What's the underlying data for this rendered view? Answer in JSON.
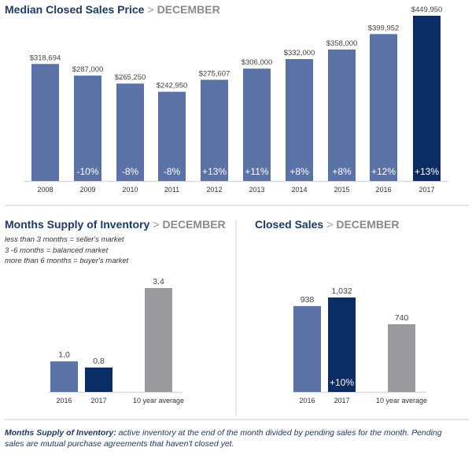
{
  "colors": {
    "bar": "#5a72a6",
    "highlight": "#0c2d63",
    "average": "#9a9a9c",
    "title": "#1f3a63",
    "subtitle": "#8a8a8a",
    "label": "#444444",
    "change_label": "#ffffff"
  },
  "chart_data": [
    {
      "type": "bar",
      "title": "Median Closed Sales Price",
      "subtitle": "DECEMBER",
      "separator": ">",
      "categories": [
        "2008",
        "2009",
        "2010",
        "2011",
        "2012",
        "2013",
        "2014",
        "2015",
        "2016",
        "2017"
      ],
      "values": [
        318694,
        287000,
        265250,
        242950,
        275607,
        306000,
        332000,
        358000,
        399952,
        449950
      ],
      "value_labels": [
        "$318,694",
        "$287,000",
        "$265,250",
        "$242,950",
        "$275,607",
        "$306,000",
        "$332,000",
        "$358,000",
        "$399,952",
        "$449,950"
      ],
      "change_labels": [
        "",
        "-10%",
        "-8%",
        "-8%",
        "+13%",
        "+11%",
        "+8%",
        "+8%",
        "+12%",
        "+13%"
      ],
      "highlight_index": 9,
      "xlabel": "",
      "ylabel": "",
      "ylim": [
        0,
        449950
      ],
      "grid": false,
      "legend": "none"
    },
    {
      "type": "bar",
      "title": "Months Supply of Inventory",
      "subtitle": "DECEMBER",
      "separator": ">",
      "notes": [
        "less than 3 months = seller's market",
        "3 -6 months = balanced market",
        "more than 6 months = buyer's market"
      ],
      "categories": [
        "2016",
        "2017",
        "10 year average"
      ],
      "values": [
        1.0,
        0.8,
        3.4
      ],
      "value_labels": [
        "1.0",
        "0.8",
        "3.4"
      ],
      "change_labels": [
        "",
        "",
        ""
      ],
      "ylim": [
        0,
        3.4
      ],
      "grid": false,
      "legend": "none"
    },
    {
      "type": "bar",
      "title": "Closed Sales",
      "subtitle": "DECEMBER",
      "separator": ">",
      "categories": [
        "2016",
        "2017",
        "10 year average"
      ],
      "values": [
        938,
        1032,
        740
      ],
      "value_labels": [
        "938",
        "1,032",
        "740"
      ],
      "change_labels": [
        "",
        "+10%",
        ""
      ],
      "ylim": [
        0,
        1032
      ],
      "grid": false,
      "legend": "none"
    }
  ],
  "footnote": {
    "term": "Months Supply of Inventory:",
    "text": " active inventory at the end of the month divided by pending sales for the month. Pending sales are mutual purchase agreements that haven't closed yet."
  }
}
